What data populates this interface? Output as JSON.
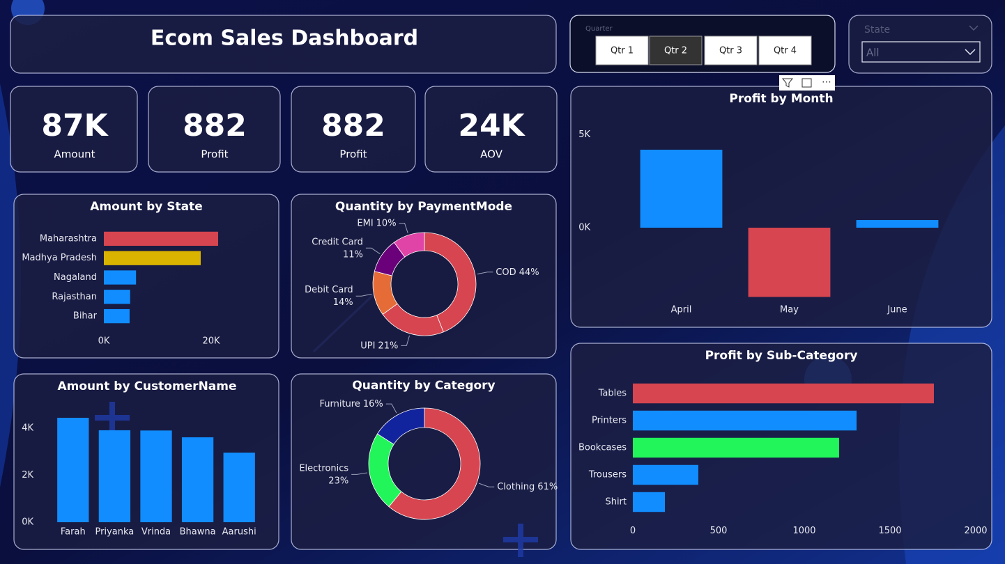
{
  "header": {
    "title": "Ecom Sales Dashboard"
  },
  "kpis": [
    {
      "value": "87K",
      "label": "Amount"
    },
    {
      "value": "882",
      "label": "Profit"
    },
    {
      "value": "882",
      "label": "Profit"
    },
    {
      "value": "24K",
      "label": "AOV"
    }
  ],
  "slicer": {
    "title": "Quarter",
    "options": [
      "Qtr 1",
      "Qtr 2",
      "Qtr 3",
      "Qtr 4"
    ],
    "selected": "Qtr 2"
  },
  "state_filter": {
    "title": "State",
    "value": "All"
  },
  "chart_data": [
    {
      "type": "bar",
      "horizontal": true,
      "title": "Amount by State",
      "categories": [
        "Maharashtra",
        "Madhya Pradesh",
        "Nagaland",
        "Rajasthan",
        "Bihar"
      ],
      "values": [
        21300,
        18050,
        6000,
        4900,
        4800
      ],
      "colors": [
        "#d64550",
        "#d9b300",
        "#118dff",
        "#118dff",
        "#118dff"
      ],
      "xlim": [
        0,
        22000
      ],
      "xticks": [
        {
          "value": 0,
          "label": "0K"
        },
        {
          "value": 20000,
          "label": "20K"
        }
      ]
    },
    {
      "type": "pie",
      "donut": true,
      "title": "Quantity by PaymentMode",
      "categories": [
        "COD",
        "UPI",
        "Debit Card",
        "Credit Card",
        "EMI"
      ],
      "values": [
        44,
        21,
        14,
        11,
        10
      ],
      "value_labels": [
        "44%",
        "21%",
        "14%",
        "11%",
        "10%"
      ],
      "colors": [
        "#d64550",
        "#d64550",
        "#e66c37",
        "#6b007b",
        "#e044a7"
      ]
    },
    {
      "type": "bar",
      "horizontal": false,
      "title": "Amount by CustomerName",
      "categories": [
        "Farah",
        "Priyanka",
        "Vrinda",
        "Bhawna",
        "Aarushi"
      ],
      "values": [
        4440,
        3910,
        3900,
        3610,
        2960
      ],
      "colors": [
        "#118dff",
        "#118dff",
        "#118dff",
        "#118dff",
        "#118dff"
      ],
      "ylim": [
        0,
        4500
      ],
      "yticks": [
        {
          "value": 0,
          "label": "0K"
        },
        {
          "value": 2000,
          "label": "2K"
        },
        {
          "value": 4000,
          "label": "4K"
        }
      ]
    },
    {
      "type": "pie",
      "donut": true,
      "title": "Quantity by Category",
      "categories": [
        "Clothing",
        "Electronics",
        "Furniture"
      ],
      "values": [
        61,
        23,
        16
      ],
      "value_labels": [
        "61%",
        "23%",
        "16%"
      ],
      "colors": [
        "#d64550",
        "#21f55a",
        "#12239e"
      ]
    },
    {
      "type": "bar",
      "horizontal": false,
      "title": "Profit by Month",
      "categories": [
        "April",
        "May",
        "June"
      ],
      "values": [
        4200,
        -3730,
        412
      ],
      "colors": [
        "#118dff",
        "#d64550",
        "#118dff"
      ],
      "ylim": [
        -3900,
        5100
      ],
      "yticks": [
        {
          "value": 0,
          "label": "0K"
        },
        {
          "value": 5000,
          "label": "5K"
        }
      ]
    },
    {
      "type": "bar",
      "horizontal": true,
      "title": "Profit by Sub-Category",
      "categories": [
        "Tables",
        "Printers",
        "Bookcases",
        "Trousers",
        "Shirt"
      ],
      "values": [
        1756,
        1305,
        1203,
        382,
        187
      ],
      "colors": [
        "#d64550",
        "#118dff",
        "#21f55a",
        "#118dff",
        "#118dff"
      ],
      "xlim": [
        0,
        2000
      ],
      "xticks": [
        0,
        500,
        1000,
        1500,
        2000
      ]
    }
  ]
}
